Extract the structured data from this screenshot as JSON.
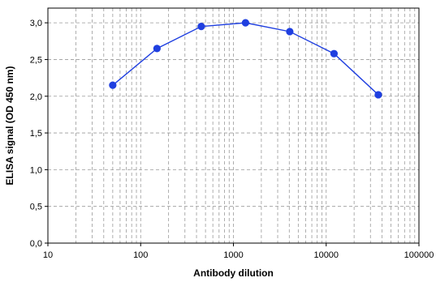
{
  "chart_data": {
    "type": "line",
    "xlabel": "Antibody dilution",
    "ylabel": "ELISA signal (OD 450 nm)",
    "xscale": "log",
    "xlim": [
      10,
      100000
    ],
    "ylim": [
      0,
      3.2
    ],
    "grid": true,
    "legend": "none",
    "x_ticks": [
      {
        "value": 10,
        "label": "10"
      },
      {
        "value": 100,
        "label": "100"
      },
      {
        "value": 1000,
        "label": "1000"
      },
      {
        "value": 10000,
        "label": "10000"
      },
      {
        "value": 100000,
        "label": "100000"
      }
    ],
    "y_ticks": [
      {
        "value": 0,
        "label": "0,0"
      },
      {
        "value": 0.5,
        "label": "0,5"
      },
      {
        "value": 1,
        "label": "1,0"
      },
      {
        "value": 1.5,
        "label": "1,5"
      },
      {
        "value": 2,
        "label": "2,0"
      },
      {
        "value": 2.5,
        "label": "2,5"
      },
      {
        "value": 3,
        "label": "3,0"
      }
    ],
    "series": [
      {
        "color": "#1f3fe0",
        "x": [
          50,
          150,
          450,
          1350,
          4050,
          12150,
          36450
        ],
        "y": [
          2.15,
          2.65,
          2.95,
          3.0,
          2.88,
          2.58,
          2.02
        ]
      }
    ]
  }
}
